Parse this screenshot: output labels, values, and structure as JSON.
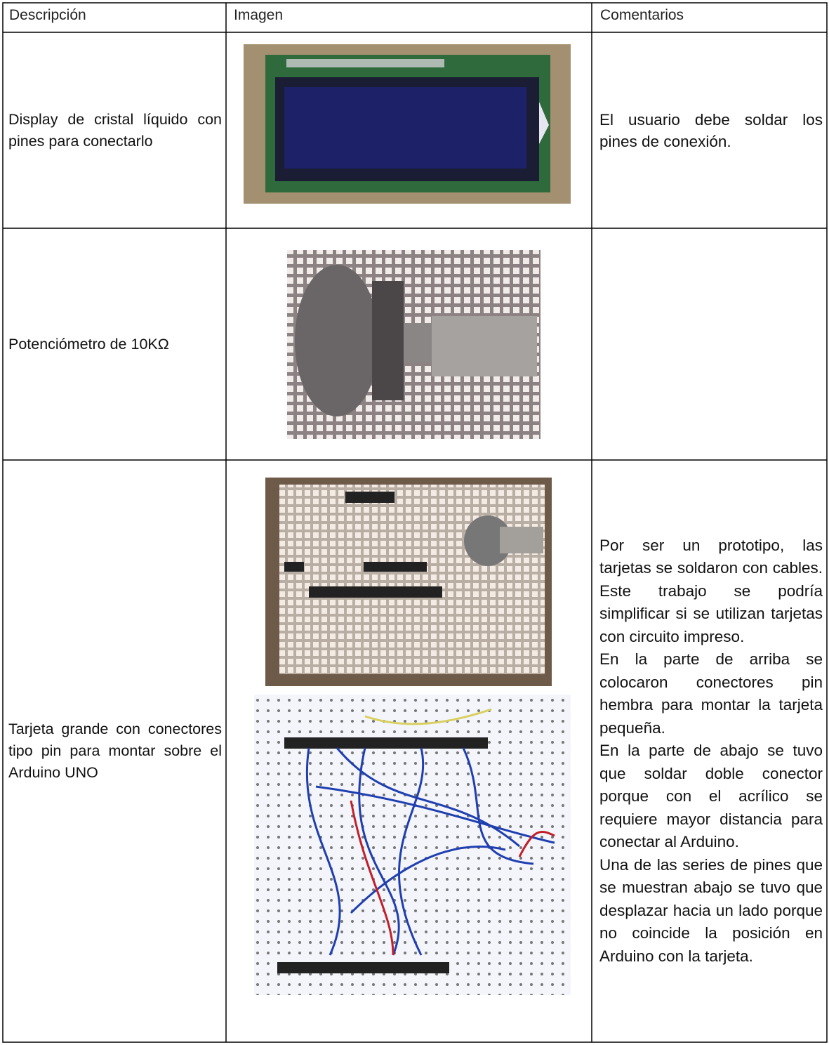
{
  "table": {
    "header": [
      "Descripción",
      "Imagen",
      "Comentarios"
    ],
    "rows": [
      {
        "description": "Display de cristal líquido con pines para conectarlo",
        "comments": [
          "El usuario debe soldar los pines de conexión."
        ]
      },
      {
        "description": "Potenciómetro de 10KΩ"
      },
      {
        "description": "Tarjeta grande con conectores tipo pin para montar sobre el Arduino UNO",
        "comments": [
          "Por ser un prototipo, las tarjetas se soldaron con cables. Este trabajo se podría simplificar si se utilizan tarjetas con circuito impreso.",
          "En la parte de arriba se colocaron conectores pin hembra para montar la tarjeta pequeña.",
          "En la parte de abajo se tuvo que soldar doble conector porque con el acrílico se requiere mayor distancia para conectar al Arduino.",
          "Una de las series de pines que se muestran abajo se tuvo que desplazar hacia un lado porque no coincide la posición en Arduino con la tarjeta."
        ]
      }
    ]
  }
}
